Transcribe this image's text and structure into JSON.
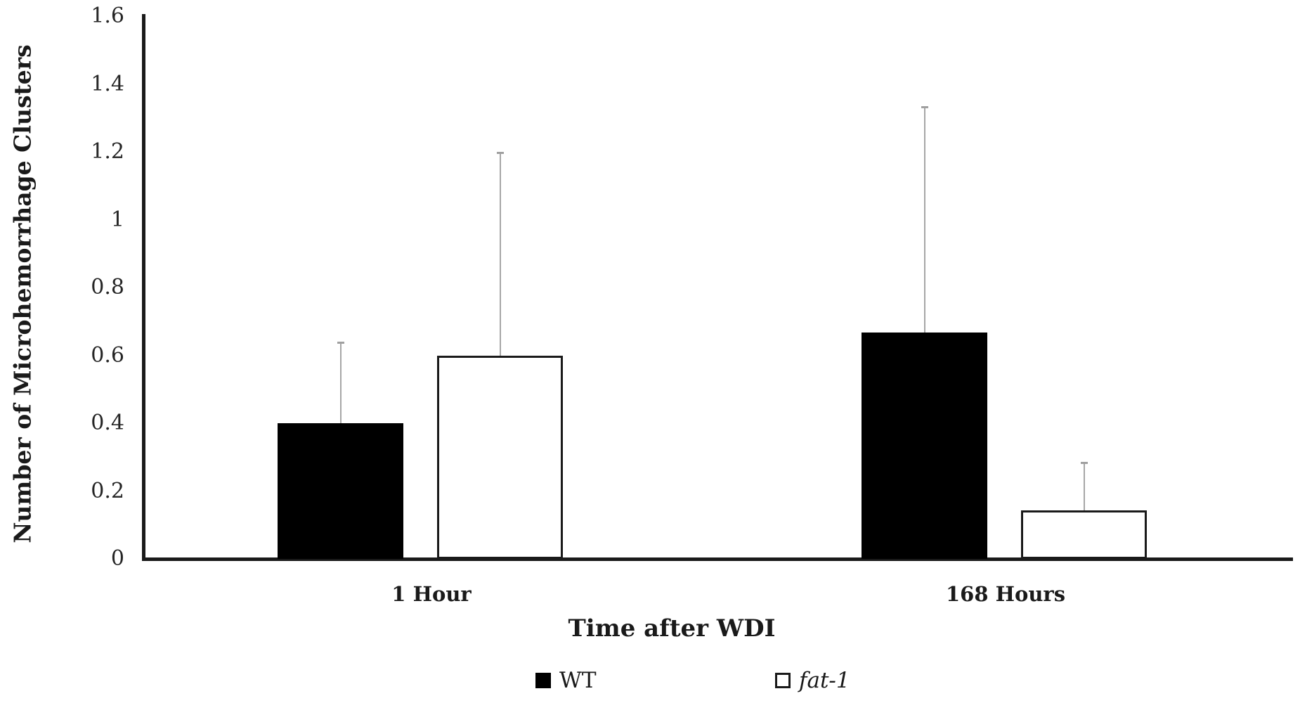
{
  "chart_data": {
    "type": "bar",
    "title": "",
    "categories": [
      "1 Hour",
      "168 Hours"
    ],
    "series": [
      {
        "name": "WT",
        "values": [
          0.4,
          0.667
        ],
        "errors_up": [
          0.24,
          0.667
        ],
        "fill": "#000000",
        "stroke": "#000000"
      },
      {
        "name": "fat-1",
        "values": [
          0.6,
          0.143
        ],
        "errors_up": [
          0.6,
          0.143
        ],
        "fill": "#ffffff",
        "stroke": "#1a1a1a"
      }
    ],
    "xlabel": "Time after WDI",
    "ylabel": "Number of Microhemorrhage Clusters",
    "ylim": [
      0,
      1.6
    ],
    "ytick_labels": [
      "0",
      "0.2",
      "0.4",
      "0.6",
      "0.8",
      "1",
      "1.2",
      "1.4",
      "1.6"
    ],
    "grid": "off",
    "legend_position": "bottom",
    "colors": {
      "axis": "#1a1a1a",
      "error_bar": "#a6a6a6",
      "text": "#1a1a1a"
    },
    "legend": [
      {
        "label": "WT",
        "swatch": "filled-black-square",
        "italic": false
      },
      {
        "label": "fat-1",
        "swatch": "outlined-white-square",
        "italic": true
      }
    ]
  }
}
